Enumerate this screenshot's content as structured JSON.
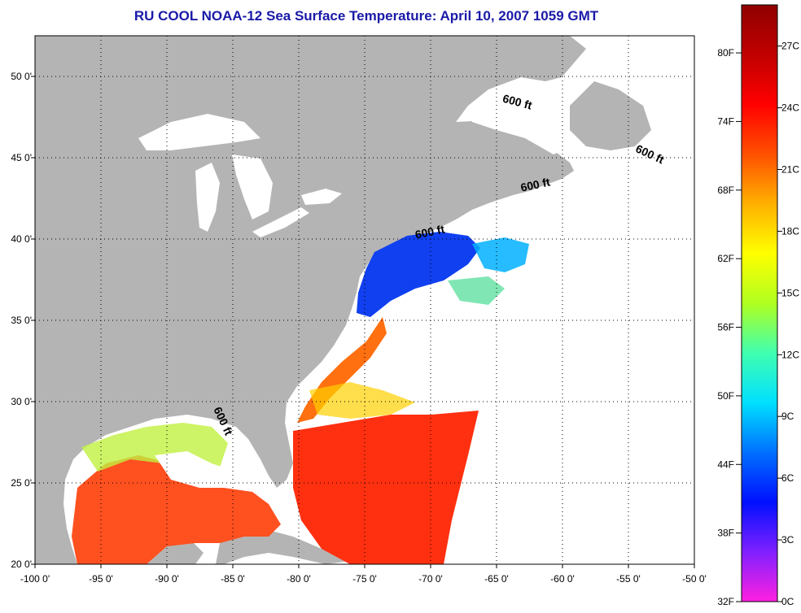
{
  "title": "RU COOL  NOAA-12  Sea Surface Temperature:  April 10, 2007 1059 GMT",
  "map": {
    "lon_range": [
      -100,
      -50
    ],
    "lat_range": [
      20,
      52.5
    ],
    "lon_ticks": [
      {
        "value": -100,
        "label": "-100 0'"
      },
      {
        "value": -95,
        "label": "-95 0'"
      },
      {
        "value": -90,
        "label": "-90 0'"
      },
      {
        "value": -85,
        "label": "-85 0'"
      },
      {
        "value": -80,
        "label": "-80 0'"
      },
      {
        "value": -75,
        "label": "-75 0'"
      },
      {
        "value": -70,
        "label": "-70 0'"
      },
      {
        "value": -65,
        "label": "-65 0'"
      },
      {
        "value": -60,
        "label": "-60 0'"
      },
      {
        "value": -55,
        "label": "-55 0'"
      },
      {
        "value": -50,
        "label": "-50 0'"
      }
    ],
    "lat_ticks": [
      {
        "value": 20,
        "label": "20 0'"
      },
      {
        "value": 25,
        "label": "25 0'"
      },
      {
        "value": 30,
        "label": "30 0'"
      },
      {
        "value": 35,
        "label": "35 0'"
      },
      {
        "value": 40,
        "label": "40 0'"
      },
      {
        "value": 45,
        "label": "45 0'"
      },
      {
        "value": 50,
        "label": "50 0'"
      }
    ],
    "contour_labels": [
      {
        "text": "600 ft",
        "lon": -63.5,
        "lat": 48.2,
        "rotate": 15
      },
      {
        "text": "600 ft",
        "lon": -53.5,
        "lat": 45.0,
        "rotate": 25
      },
      {
        "text": "600 ft",
        "lon": -62.0,
        "lat": 43.1,
        "rotate": -12
      },
      {
        "text": "600 ft",
        "lon": -70.0,
        "lat": 40.2,
        "rotate": -12
      },
      {
        "text": "600 ft",
        "lon": -86.0,
        "lat": 28.7,
        "rotate": 65
      }
    ]
  },
  "colorbar": {
    "min_c": 0,
    "max_c": 29,
    "fahrenheit_labels": [
      {
        "value": 32,
        "label": "32F"
      },
      {
        "value": 38,
        "label": "38F"
      },
      {
        "value": 44,
        "label": "44F"
      },
      {
        "value": 50,
        "label": "50F"
      },
      {
        "value": 56,
        "label": "56F"
      },
      {
        "value": 62,
        "label": "62F"
      },
      {
        "value": 68,
        "label": "68F"
      },
      {
        "value": 74,
        "label": "74F"
      },
      {
        "value": 80,
        "label": "80F"
      }
    ],
    "celsius_labels": [
      {
        "value": 0,
        "label": "0C"
      },
      {
        "value": 3,
        "label": "3C"
      },
      {
        "value": 6,
        "label": "6C"
      },
      {
        "value": 9,
        "label": "9C"
      },
      {
        "value": 12,
        "label": "12C"
      },
      {
        "value": 15,
        "label": "15C"
      },
      {
        "value": 18,
        "label": "18C"
      },
      {
        "value": 21,
        "label": "21C"
      },
      {
        "value": 24,
        "label": "24C"
      },
      {
        "value": 27,
        "label": "27C"
      }
    ],
    "colors": [
      "#ff20e0",
      "#8020ff",
      "#0010ff",
      "#0070ff",
      "#00e0ff",
      "#40ffb0",
      "#b0ff20",
      "#ffff00",
      "#ffb000",
      "#ff5000",
      "#ff0000",
      "#c00000",
      "#900000"
    ]
  },
  "colors": {
    "land": "#b4b4b4",
    "no_data": "#ffffff",
    "grid": "#000000",
    "title": "#1a1aa8"
  }
}
